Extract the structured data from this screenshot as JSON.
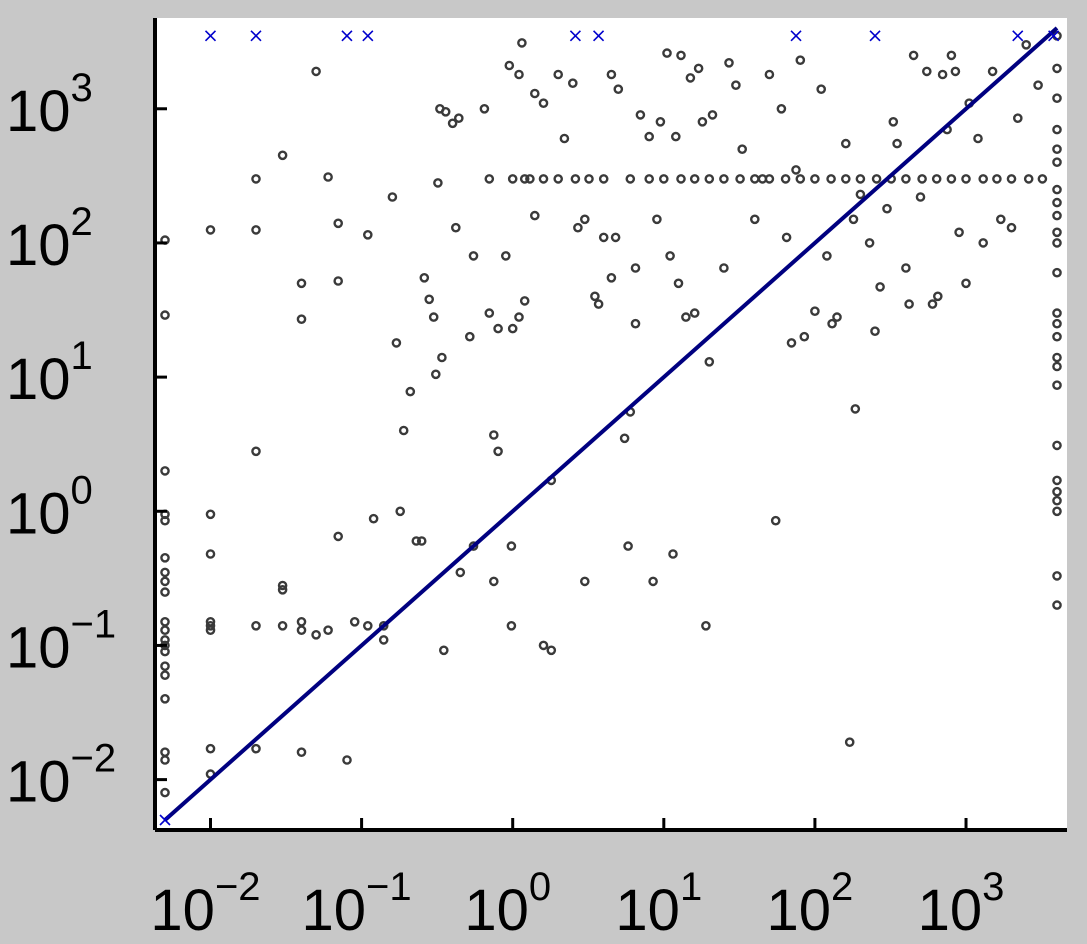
{
  "colors": {
    "background": "#c8c8c8",
    "plot_area": "#ffffff",
    "points": "#3a3a3a",
    "diagonal": "#000080",
    "capped_markers": "#0000cc",
    "axes": "#000000"
  },
  "chart_data": {
    "type": "scatter",
    "title": "",
    "xlabel": "",
    "ylabel": "",
    "x_scale": "log",
    "y_scale": "log",
    "xlim": [
      0.005,
      4000
    ],
    "ylim": [
      0.005,
      4000
    ],
    "grid": false,
    "legend": "none",
    "x_ticks": [
      {
        "value": 0.01,
        "base": "10",
        "exp": "−2"
      },
      {
        "value": 0.1,
        "base": "10",
        "exp": "−1"
      },
      {
        "value": 1,
        "base": "10",
        "exp": "0"
      },
      {
        "value": 10,
        "base": "10",
        "exp": "1"
      },
      {
        "value": 100,
        "base": "10",
        "exp": "2"
      },
      {
        "value": 1000,
        "base": "10",
        "exp": "3"
      }
    ],
    "y_ticks": [
      {
        "value": 0.01,
        "base": "10",
        "exp": "−2"
      },
      {
        "value": 0.1,
        "base": "10",
        "exp": "−1"
      },
      {
        "value": 1,
        "base": "10",
        "exp": "0"
      },
      {
        "value": 10,
        "base": "10",
        "exp": "1"
      },
      {
        "value": 100,
        "base": "10",
        "exp": "2"
      },
      {
        "value": 1000,
        "base": "10",
        "exp": "3"
      }
    ],
    "reference_line": {
      "description": "y = x",
      "from": [
        0.005,
        0.005
      ],
      "to": [
        4000,
        4000
      ]
    },
    "series": [
      {
        "marker": "circle",
        "points": [
          [
            0.005,
            105
          ],
          [
            0.005,
            29
          ],
          [
            0.005,
            2.0
          ],
          [
            0.005,
            0.95
          ],
          [
            0.005,
            0.85
          ],
          [
            0.005,
            0.45
          ],
          [
            0.005,
            0.35
          ],
          [
            0.005,
            0.3
          ],
          [
            0.005,
            0.25
          ],
          [
            0.005,
            0.15
          ],
          [
            0.005,
            0.13
          ],
          [
            0.005,
            0.11
          ],
          [
            0.005,
            0.1
          ],
          [
            0.005,
            0.09
          ],
          [
            0.005,
            0.07
          ],
          [
            0.005,
            0.06
          ],
          [
            0.005,
            0.04
          ],
          [
            0.005,
            0.016
          ],
          [
            0.005,
            0.014
          ],
          [
            0.005,
            0.008
          ],
          [
            0.01,
            125
          ],
          [
            0.01,
            0.95
          ],
          [
            0.01,
            0.48
          ],
          [
            0.01,
            0.15
          ],
          [
            0.01,
            0.14
          ],
          [
            0.01,
            0.13
          ],
          [
            0.01,
            0.017
          ],
          [
            0.01,
            0.011
          ],
          [
            0.02,
            300
          ],
          [
            0.02,
            125
          ],
          [
            0.02,
            2.8
          ],
          [
            0.02,
            0.14
          ],
          [
            0.02,
            0.017
          ],
          [
            0.03,
            450
          ],
          [
            0.03,
            0.28
          ],
          [
            0.03,
            0.26
          ],
          [
            0.03,
            0.14
          ],
          [
            0.04,
            50
          ],
          [
            0.04,
            27
          ],
          [
            0.04,
            0.15
          ],
          [
            0.04,
            0.13
          ],
          [
            0.04,
            0.016
          ],
          [
            0.05,
            1900
          ],
          [
            0.05,
            0.12
          ],
          [
            0.06,
            310
          ],
          [
            0.06,
            0.13
          ],
          [
            0.07,
            140
          ],
          [
            0.07,
            52
          ],
          [
            0.07,
            0.65
          ],
          [
            0.08,
            0.014
          ],
          [
            0.09,
            0.15
          ],
          [
            0.11,
            0.14
          ],
          [
            0.11,
            115
          ],
          [
            0.12,
            0.88
          ],
          [
            0.14,
            0.11
          ],
          [
            0.14,
            0.14
          ],
          [
            0.16,
            220
          ],
          [
            0.17,
            18
          ],
          [
            0.19,
            4.0
          ],
          [
            0.21,
            7.8
          ],
          [
            0.18,
            1.0
          ],
          [
            0.25,
            0.6
          ],
          [
            0.23,
            0.6
          ],
          [
            0.26,
            55
          ],
          [
            0.28,
            38
          ],
          [
            0.3,
            28
          ],
          [
            0.32,
            280
          ],
          [
            0.33,
            1000
          ],
          [
            0.36,
            950
          ],
          [
            0.31,
            10.5
          ],
          [
            0.34,
            14
          ],
          [
            0.35,
            0.092
          ],
          [
            0.4,
            780
          ],
          [
            0.42,
            130
          ],
          [
            0.44,
            850
          ],
          [
            0.45,
            0.35
          ],
          [
            0.52,
            20
          ],
          [
            0.55,
            80
          ],
          [
            0.55,
            0.55
          ],
          [
            0.65,
            1000
          ],
          [
            0.7,
            30
          ],
          [
            0.75,
            3.7
          ],
          [
            0.8,
            2.8
          ],
          [
            0.75,
            0.3
          ],
          [
            0.8,
            23
          ],
          [
            0.9,
            80
          ],
          [
            0.95,
            2100
          ],
          [
            1.0,
            23
          ],
          [
            0.98,
            0.55
          ],
          [
            0.98,
            0.14
          ],
          [
            1.1,
            28
          ],
          [
            1.1,
            1800
          ],
          [
            1.15,
            3100
          ],
          [
            1.2,
            37
          ],
          [
            1.2,
            300
          ],
          [
            1.4,
            160
          ],
          [
            1.4,
            1300
          ],
          [
            1.6,
            1100
          ],
          [
            1.6,
            0.1
          ],
          [
            1.8,
            0.092
          ],
          [
            1.8,
            1.7
          ],
          [
            2.0,
            1800
          ],
          [
            2.2,
            600
          ],
          [
            2.5,
            1550
          ],
          [
            2.7,
            130
          ],
          [
            3.0,
            0.3
          ],
          [
            3.0,
            150
          ],
          [
            3.5,
            40
          ],
          [
            3.7,
            35
          ],
          [
            4.0,
            110
          ],
          [
            4.5,
            55
          ],
          [
            4.5,
            1800
          ],
          [
            5.0,
            1400
          ],
          [
            4.8,
            110
          ],
          [
            5.5,
            3.5
          ],
          [
            5.8,
            0.55
          ],
          [
            6.0,
            5.5
          ],
          [
            6.5,
            65
          ],
          [
            6.5,
            25
          ],
          [
            7.0,
            900
          ],
          [
            8.0,
            620
          ],
          [
            8.5,
            0.3
          ],
          [
            9.0,
            150
          ],
          [
            9.5,
            800
          ],
          [
            10.5,
            2600
          ],
          [
            11.0,
            80
          ],
          [
            11.5,
            0.48
          ],
          [
            12.0,
            620
          ],
          [
            13.0,
            2500
          ],
          [
            12.5,
            50
          ],
          [
            14.0,
            28
          ],
          [
            15.0,
            1700
          ],
          [
            16.0,
            30
          ],
          [
            17.0,
            2000
          ],
          [
            18.0,
            800
          ],
          [
            20.0,
            13
          ],
          [
            19.0,
            0.14
          ],
          [
            21.0,
            900
          ],
          [
            25.0,
            65
          ],
          [
            27.0,
            2200
          ],
          [
            30.0,
            1500
          ],
          [
            33.0,
            500
          ],
          [
            40.0,
            150
          ],
          [
            45.0,
            300
          ],
          [
            50.0,
            1800
          ],
          [
            55.0,
            0.85
          ],
          [
            60.0,
            1000
          ],
          [
            65.0,
            110
          ],
          [
            70.0,
            18
          ],
          [
            75.0,
            350
          ],
          [
            80.0,
            2300
          ],
          [
            85.0,
            20
          ],
          [
            100.0,
            31
          ],
          [
            110.0,
            1400
          ],
          [
            120.0,
            80
          ],
          [
            130.0,
            25
          ],
          [
            140.0,
            28
          ],
          [
            160.0,
            550
          ],
          [
            170.0,
            0.019
          ],
          [
            180.0,
            150
          ],
          [
            185.0,
            5.8
          ],
          [
            200.0,
            230
          ],
          [
            230.0,
            100
          ],
          [
            250.0,
            22
          ],
          [
            270.0,
            47
          ],
          [
            300.0,
            180
          ],
          [
            330.0,
            800
          ],
          [
            350.0,
            550
          ],
          [
            400.0,
            65
          ],
          [
            420.0,
            35
          ],
          [
            450.0,
            2500
          ],
          [
            500.0,
            220
          ],
          [
            550.0,
            1900
          ],
          [
            600.0,
            35
          ],
          [
            650.0,
            40
          ],
          [
            700.0,
            1800
          ],
          [
            750.0,
            700
          ],
          [
            800.0,
            2500
          ],
          [
            850.0,
            1900
          ],
          [
            900.0,
            120
          ],
          [
            1000.0,
            50
          ],
          [
            1050.0,
            1100
          ],
          [
            1200.0,
            600
          ],
          [
            1300.0,
            100
          ],
          [
            1500.0,
            1900
          ],
          [
            1700.0,
            150
          ],
          [
            2000.0,
            130
          ],
          [
            2200.0,
            850
          ],
          [
            2500.0,
            3000
          ],
          [
            3000.0,
            1500
          ],
          [
            4000.0,
            120
          ],
          [
            4000.0,
            100
          ],
          [
            4000.0,
            60
          ],
          [
            4000.0,
            30
          ],
          [
            4000.0,
            25
          ],
          [
            4000.0,
            20
          ],
          [
            4000.0,
            14
          ],
          [
            4000.0,
            12
          ],
          [
            4000.0,
            8.7
          ],
          [
            4000.0,
            3.1
          ],
          [
            4000.0,
            1.7
          ],
          [
            4000.0,
            1.4
          ],
          [
            4000.0,
            1.2
          ],
          [
            4000.0,
            1.0
          ],
          [
            4000.0,
            0.33
          ],
          [
            4000.0,
            0.2
          ],
          [
            0.7,
            300
          ],
          [
            1.0,
            300
          ],
          [
            1.3,
            300
          ],
          [
            1.6,
            300
          ],
          [
            2.0,
            300
          ],
          [
            2.6,
            300
          ],
          [
            3.2,
            300
          ],
          [
            4.0,
            300
          ],
          [
            6.0,
            300
          ],
          [
            8.0,
            300
          ],
          [
            10.0,
            300
          ],
          [
            13.0,
            300
          ],
          [
            16.0,
            300
          ],
          [
            20.0,
            300
          ],
          [
            25.0,
            300
          ],
          [
            32.0,
            300
          ],
          [
            40.0,
            300
          ],
          [
            50.0,
            300
          ],
          [
            64.0,
            300
          ],
          [
            80.0,
            300
          ],
          [
            100.0,
            300
          ],
          [
            128.0,
            300
          ],
          [
            160.0,
            300
          ],
          [
            200.0,
            300
          ],
          [
            256.0,
            300
          ],
          [
            320.0,
            300
          ],
          [
            400.0,
            300
          ],
          [
            512.0,
            300
          ],
          [
            640.0,
            300
          ],
          [
            800.0,
            300
          ],
          [
            1000.0,
            300
          ],
          [
            1300.0,
            300
          ],
          [
            1600.0,
            300
          ],
          [
            2000.0,
            300
          ],
          [
            2600.0,
            300
          ],
          [
            3200.0,
            300
          ],
          [
            4000.0,
            3500
          ],
          [
            4000.0,
            2000
          ],
          [
            4000.0,
            1200
          ],
          [
            4000.0,
            700
          ],
          [
            4000.0,
            500
          ],
          [
            4000.0,
            400
          ],
          [
            4000.0,
            250
          ],
          [
            4000.0,
            200
          ],
          [
            4000.0,
            160
          ]
        ]
      },
      {
        "marker": "x",
        "points": [
          [
            0.01,
            3500
          ],
          [
            0.02,
            3500
          ],
          [
            0.08,
            3500
          ],
          [
            0.11,
            3500
          ],
          [
            2.6,
            3500
          ],
          [
            3.7,
            3500
          ],
          [
            75.0,
            3500
          ],
          [
            250.0,
            3500
          ],
          [
            2200.0,
            3500
          ],
          [
            3800.0,
            3500
          ],
          [
            0.005,
            0.005
          ]
        ]
      }
    ]
  }
}
